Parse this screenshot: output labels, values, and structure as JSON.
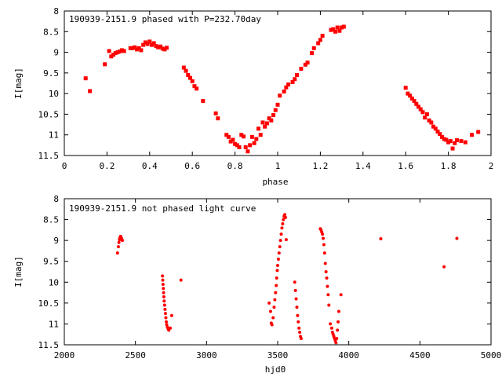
{
  "chart_data": [
    {
      "type": "scatter",
      "title": "190939-2151.9 phased with P=232.70day",
      "xlabel": "phase",
      "ylabel": "I[mag]",
      "xlim": [
        0,
        2
      ],
      "ylim": [
        11.5,
        8
      ],
      "y_inverted": true,
      "grid": false,
      "marker_color": "#ff0000",
      "marker": "filled-square",
      "xticks": [
        "0",
        "0.2",
        "0.4",
        "0.6",
        "0.8",
        "1",
        "1.2",
        "1.4",
        "1.6",
        "1.8",
        "2"
      ],
      "yticks": [
        "8",
        "8.5",
        "9",
        "9.5",
        "10",
        "10.5",
        "11",
        "11.5"
      ],
      "xtick_values": [
        0,
        0.2,
        0.4,
        0.6,
        0.8,
        1.0,
        1.2,
        1.4,
        1.6,
        1.8,
        2.0
      ],
      "ytick_values": [
        8,
        8.5,
        9,
        9.5,
        10,
        10.5,
        11,
        11.5
      ],
      "x": [
        0.1,
        0.12,
        0.19,
        0.21,
        0.22,
        0.23,
        0.24,
        0.25,
        0.26,
        0.27,
        0.28,
        0.31,
        0.32,
        0.33,
        0.34,
        0.35,
        0.36,
        0.37,
        0.38,
        0.39,
        0.4,
        0.41,
        0.42,
        0.43,
        0.44,
        0.45,
        0.46,
        0.47,
        0.48,
        0.56,
        0.57,
        0.58,
        0.59,
        0.6,
        0.61,
        0.62,
        0.65,
        0.71,
        0.72,
        0.76,
        0.77,
        0.78,
        0.79,
        0.8,
        0.81,
        0.82,
        0.83,
        0.84,
        0.85,
        0.86,
        0.87,
        0.88,
        0.89,
        0.9,
        0.91,
        0.92,
        0.93,
        0.94,
        0.95,
        0.96,
        0.97,
        0.98,
        0.99,
        1.0,
        1.01,
        1.03,
        1.04,
        1.05,
        1.07,
        1.08,
        1.09,
        1.11,
        1.13,
        1.14,
        1.16,
        1.17,
        1.19,
        1.2,
        1.21,
        1.25,
        1.26,
        1.27,
        1.28,
        1.29,
        1.3,
        1.31,
        1.6,
        1.61,
        1.62,
        1.63,
        1.64,
        1.65,
        1.66,
        1.67,
        1.68,
        1.69,
        1.7,
        1.71,
        1.72,
        1.73,
        1.74,
        1.75,
        1.76,
        1.77,
        1.78,
        1.79,
        1.8,
        1.81,
        1.82,
        1.83,
        1.84,
        1.86,
        1.88,
        1.91,
        1.94
      ],
      "y": [
        9.63,
        9.94,
        9.29,
        8.97,
        9.1,
        9.06,
        9.02,
        9.0,
        8.98,
        8.95,
        8.97,
        8.9,
        8.9,
        8.88,
        8.93,
        8.9,
        8.95,
        8.82,
        8.76,
        8.8,
        8.74,
        8.82,
        8.78,
        8.85,
        8.88,
        8.86,
        8.91,
        8.93,
        8.89,
        9.37,
        9.45,
        9.55,
        9.62,
        9.7,
        9.82,
        9.88,
        10.18,
        10.48,
        10.6,
        11.0,
        11.05,
        11.16,
        11.12,
        11.22,
        11.25,
        11.3,
        11.0,
        11.04,
        11.3,
        11.4,
        11.25,
        11.05,
        11.2,
        11.1,
        10.85,
        11.0,
        10.7,
        10.8,
        10.72,
        10.6,
        10.65,
        10.52,
        10.4,
        10.27,
        10.05,
        9.95,
        9.85,
        9.78,
        9.72,
        9.65,
        9.55,
        9.4,
        9.3,
        9.25,
        9.02,
        8.9,
        8.78,
        8.7,
        8.6,
        8.46,
        8.44,
        8.5,
        8.4,
        8.48,
        8.4,
        8.38,
        9.86,
        10.0,
        10.05,
        10.12,
        10.18,
        10.25,
        10.32,
        10.38,
        10.45,
        10.58,
        10.5,
        10.65,
        10.7,
        10.8,
        10.85,
        10.92,
        10.98,
        11.05,
        11.1,
        11.12,
        11.18,
        11.15,
        11.33,
        11.2,
        11.13,
        11.15,
        11.18,
        11.0,
        10.93
      ]
    },
    {
      "type": "scatter",
      "title": "190939-2151.9 not phased light curve",
      "xlabel": "hjd0",
      "ylabel": "I[mag]",
      "xlim": [
        2000,
        5000
      ],
      "ylim": [
        11.5,
        8
      ],
      "y_inverted": true,
      "grid": false,
      "marker_color": "#ff0000",
      "marker": "filled-circle",
      "xticks": [
        "2000",
        "2500",
        "3000",
        "3500",
        "4000",
        "4500",
        "5000"
      ],
      "yticks": [
        "8",
        "8.5",
        "9",
        "9.5",
        "10",
        "10.5",
        "11",
        "11.5"
      ],
      "xtick_values": [
        2000,
        2500,
        3000,
        3500,
        4000,
        4500,
        5000
      ],
      "ytick_values": [
        8,
        8.5,
        9,
        9.5,
        10,
        10.5,
        11,
        11.5
      ],
      "x": [
        2374,
        2380,
        2384,
        2388,
        2390,
        2393,
        2396,
        2399,
        2402,
        2405,
        2408,
        2690,
        2692,
        2694,
        2696,
        2698,
        2700,
        2702,
        2705,
        2708,
        2711,
        2714,
        2717,
        2720,
        2725,
        2730,
        2735,
        2745,
        2755,
        2820,
        3440,
        3450,
        3455,
        3460,
        3468,
        3475,
        3480,
        3485,
        3490,
        3493,
        3497,
        3500,
        3505,
        3510,
        3515,
        3520,
        3525,
        3530,
        3535,
        3540,
        3545,
        3550,
        3555,
        3560,
        3620,
        3625,
        3630,
        3635,
        3640,
        3645,
        3650,
        3655,
        3660,
        3665,
        3800,
        3805,
        3810,
        3815,
        3820,
        3825,
        3830,
        3835,
        3840,
        3845,
        3850,
        3855,
        3860,
        3870,
        3880,
        3885,
        3890,
        3895,
        3900,
        3905,
        3910,
        3915,
        3920,
        3925,
        3930,
        3945,
        4225,
        4670,
        4760
      ],
      "y": [
        9.3,
        9.15,
        9.05,
        8.98,
        8.95,
        8.92,
        8.9,
        8.93,
        8.95,
        8.98,
        9.0,
        9.85,
        9.95,
        10.05,
        10.15,
        10.25,
        10.35,
        10.45,
        10.55,
        10.65,
        10.75,
        10.85,
        10.95,
        11.02,
        11.08,
        11.12,
        11.15,
        11.1,
        10.8,
        9.95,
        10.5,
        10.7,
        10.98,
        11.02,
        10.85,
        10.6,
        10.42,
        10.25,
        10.08,
        9.9,
        9.72,
        9.6,
        9.45,
        9.3,
        9.15,
        9.0,
        8.85,
        8.7,
        8.6,
        8.5,
        8.42,
        8.38,
        8.45,
        8.98,
        10.0,
        10.2,
        10.4,
        10.6,
        10.8,
        10.95,
        11.1,
        11.2,
        11.3,
        11.35,
        8.72,
        8.75,
        8.8,
        8.85,
        8.95,
        9.1,
        9.3,
        9.55,
        9.75,
        9.9,
        10.1,
        10.3,
        10.55,
        11.0,
        11.1,
        11.2,
        11.25,
        11.3,
        11.35,
        11.4,
        11.45,
        11.35,
        11.15,
        10.95,
        10.7,
        10.3,
        8.96,
        9.63,
        8.95
      ]
    }
  ]
}
